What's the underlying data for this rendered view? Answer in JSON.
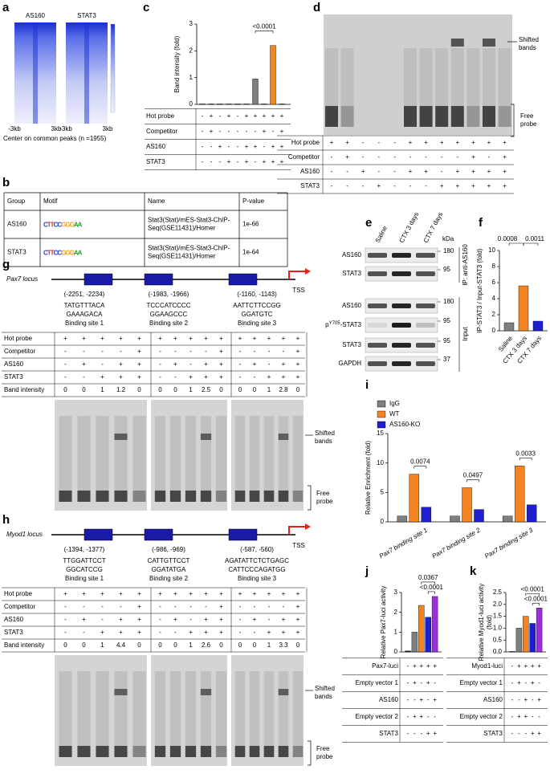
{
  "panel_labels": [
    "a",
    "b",
    "c",
    "d",
    "e",
    "f",
    "g",
    "h",
    "i",
    "j",
    "k"
  ],
  "a": {
    "titles": [
      "AS160",
      "STAT3"
    ],
    "ticks": [
      "-3kb",
      "3kb",
      "-3kb",
      "3kb"
    ],
    "caption": "Center on common peaks (n =1955)"
  },
  "b": {
    "header": [
      "Group",
      "Motif",
      "Name",
      "P-value"
    ],
    "rows": [
      {
        "group": "AS160",
        "motif": "CTTCCGGGAA",
        "name": [
          "Stat3(Stat)/mES-Stat3-ChIP-",
          "Seq(GSE11431)/Homer"
        ],
        "pvalue": "1e-66"
      },
      {
        "group": "STAT3",
        "motif": "CTTCCGGGAA",
        "name": [
          "Stat3(Stat)/mES-Stat3-ChIP-",
          "Seq(GSE11431)/Homer"
        ],
        "pvalue": "1e-64"
      }
    ]
  },
  "c": {
    "chart": {
      "type": "bar",
      "ylabel": "Band intensity (fold)",
      "ylim": [
        0,
        3
      ],
      "yticks": [
        0,
        1,
        2,
        3
      ],
      "values": [
        0.02,
        0.02,
        0.02,
        0.02,
        0.02,
        0.02,
        0.95,
        0.02,
        2.2,
        0.02
      ],
      "colors": [
        "#7f7f7f",
        "#7f7f7f",
        "#7f7f7f",
        "#7f7f7f",
        "#7f7f7f",
        "#7f7f7f",
        "#7f7f7f",
        "#7f7f7f",
        "#f28522",
        "#7f7f7f"
      ],
      "annotation": "<0.0001"
    },
    "table": {
      "row_labels": [
        "Hot probe",
        "Competitor",
        "AS160",
        "STAT3"
      ],
      "rows": [
        [
          "-",
          "+",
          "-",
          "+",
          "-",
          "+",
          "+",
          "+",
          "+",
          "+"
        ],
        [
          "-",
          "+",
          "-",
          "-",
          "-",
          "-",
          "-",
          "+",
          "-",
          "+"
        ],
        [
          "-",
          "-",
          "+",
          "-",
          "-",
          "+",
          "+",
          "-",
          "+",
          "+"
        ],
        [
          "-",
          "-",
          "-",
          "+",
          "-",
          "+",
          "-",
          "+",
          "+",
          "+"
        ]
      ]
    }
  },
  "d": {
    "shifted": [
      "Shifted",
      "bands"
    ],
    "free": [
      "Free",
      "probe"
    ],
    "table": {
      "row_labels": [
        "Hot probe",
        "Competitor",
        "AS160",
        "STAT3"
      ],
      "rows": [
        [
          "+",
          "+",
          "-",
          "-",
          "-",
          "+",
          "+",
          "+",
          "+",
          "+",
          "+",
          "+"
        ],
        [
          "-",
          "+",
          "-",
          "-",
          "-",
          "-",
          "-",
          "-",
          "-",
          "+",
          "-",
          "+"
        ],
        [
          "-",
          "-",
          "+",
          "-",
          "-",
          "+",
          "+",
          "-",
          "+",
          "+",
          "+",
          "+"
        ],
        [
          "-",
          "-",
          "-",
          "+",
          "-",
          "-",
          "-",
          "+",
          "+",
          "+",
          "+",
          "+"
        ]
      ]
    }
  },
  "e": {
    "columns": [
      "Saline",
      "CTX 3 days",
      "CTX 7 days"
    ],
    "unit": "kDa",
    "rows": [
      {
        "label": "AS160",
        "kda": 180
      },
      {
        "label": "STAT3",
        "kda": 95
      },
      {
        "label": "AS160",
        "kda": 180
      },
      {
        "label_parts": [
          "p",
          "Y705",
          "-STAT3"
        ],
        "kda": 95
      },
      {
        "label": "STAT3",
        "kda": 95
      },
      {
        "label": "GAPDH",
        "kda": 37
      }
    ],
    "groups": [
      "IP: anti-AS160",
      "Input"
    ]
  },
  "f": {
    "chart": {
      "type": "bar",
      "ylabel": "IP-STAT3 / Input-STAT3 (fold)",
      "ylim": [
        0,
        10
      ],
      "yticks": [
        0,
        2,
        4,
        6,
        8,
        10
      ],
      "categories": [
        "Saline",
        "CTX 3 days",
        "CTX 7 days"
      ],
      "values": [
        1,
        5.6,
        1.2
      ],
      "colors": [
        "#7f7f7f",
        "#f28522",
        "#1f1fd1"
      ],
      "annotations": [
        "0.0008",
        "0.0011"
      ]
    }
  },
  "g": {
    "locus": "Pax7 locus",
    "tss": "TSS",
    "sites": [
      {
        "coord": "(-2251, -2234)",
        "seq": [
          "TATGTTTACA",
          "GAAAGACA"
        ],
        "name": "Binding site 1"
      },
      {
        "coord": "(-1983, -1966)",
        "seq": [
          "TCCCATCCCC",
          "GGAAGCCC"
        ],
        "name": "Binding site 2"
      },
      {
        "coord": "(-1160, -1143)",
        "seq": [
          "AATTCTTCCGG",
          "GGATGTC"
        ],
        "name": "Binding site 3"
      }
    ],
    "row_labels": [
      "Hot probe",
      "Competitor",
      "AS160",
      "STAT3",
      "Band intensity"
    ],
    "groups": [
      [
        [
          "+",
          "+",
          "+",
          "+",
          "+"
        ],
        [
          "-",
          "-",
          "-",
          "-",
          "+"
        ],
        [
          "-",
          "+",
          "-",
          "+",
          "+"
        ],
        [
          "-",
          "-",
          "+",
          "+",
          "+"
        ],
        [
          0,
          0,
          1,
          1.2,
          0
        ]
      ],
      [
        [
          "+",
          "+",
          "+",
          "+",
          "+"
        ],
        [
          "-",
          "-",
          "-",
          "-",
          "+"
        ],
        [
          "-",
          "+",
          "-",
          "+",
          "+"
        ],
        [
          "-",
          "-",
          "+",
          "+",
          "+"
        ],
        [
          0,
          0,
          1,
          2.5,
          0
        ]
      ],
      [
        [
          "+",
          "+",
          "+",
          "+",
          "+"
        ],
        [
          "-",
          "-",
          "-",
          "-",
          "+"
        ],
        [
          "-",
          "+",
          "-",
          "+",
          "+"
        ],
        [
          "-",
          "-",
          "+",
          "+",
          "+"
        ],
        [
          0,
          0,
          1,
          2.8,
          0
        ]
      ]
    ],
    "shifted": [
      "Shifted",
      "bands"
    ],
    "free": [
      "Free",
      "probe"
    ]
  },
  "h": {
    "locus": "Myod1 locus",
    "tss": "TSS",
    "sites": [
      {
        "coord": "(-1394, -1377)",
        "seq": [
          "TTGGATTCCT",
          "GGCATCCG"
        ],
        "name": "Binding site 1"
      },
      {
        "coord": "(-986, -969)",
        "seq": [
          "CATTGTTCCT",
          "GGATATGA"
        ],
        "name": "Binding site 2"
      },
      {
        "coord": "(-587, -560)",
        "seq": [
          "AGATATTCTCTGAGC",
          "CATTCCCAGATGG"
        ],
        "name": "Binding site 3"
      }
    ],
    "row_labels": [
      "Hot probe",
      "Competitor",
      "AS160",
      "STAT3",
      "Band intensity"
    ],
    "groups": [
      [
        [
          "+",
          "+",
          "+",
          "+",
          "+"
        ],
        [
          "-",
          "-",
          "-",
          "-",
          "+"
        ],
        [
          "-",
          "+",
          "-",
          "+",
          "+"
        ],
        [
          "-",
          "-",
          "+",
          "+",
          "+"
        ],
        [
          0,
          0,
          1,
          4.4,
          0
        ]
      ],
      [
        [
          "+",
          "+",
          "+",
          "+",
          "+"
        ],
        [
          "-",
          "-",
          "-",
          "-",
          "+"
        ],
        [
          "-",
          "+",
          "-",
          "+",
          "+"
        ],
        [
          "-",
          "-",
          "+",
          "+",
          "+"
        ],
        [
          0,
          0,
          1,
          2.6,
          0
        ]
      ],
      [
        [
          "+",
          "+",
          "+",
          "+",
          "+"
        ],
        [
          "-",
          "-",
          "-",
          "-",
          "+"
        ],
        [
          "-",
          "+",
          "-",
          "+",
          "+"
        ],
        [
          "-",
          "-",
          "+",
          "+",
          "+"
        ],
        [
          0,
          0,
          1,
          3.3,
          0
        ]
      ]
    ],
    "shifted": [
      "Shifted",
      "bands"
    ],
    "free": [
      "Free",
      "probe"
    ]
  },
  "i": {
    "chart": {
      "type": "grouped-bar",
      "ylabel": "Relative Enrichment (fold)",
      "ylim": [
        0,
        15
      ],
      "yticks": [
        0,
        5,
        10,
        15
      ],
      "categories": [
        "Pax7 binding site 1",
        "Pax7 binding site 2",
        "Pax7 binding site 3"
      ],
      "series": [
        {
          "name": "IgG",
          "color": "#7f7f7f",
          "values": [
            1,
            1,
            1
          ]
        },
        {
          "name": "WT",
          "color": "#f28522",
          "values": [
            8.1,
            5.8,
            9.5
          ]
        },
        {
          "name": "AS160-KO",
          "color": "#1f1fd1",
          "values": [
            2.5,
            2.1,
            2.9
          ]
        }
      ],
      "annotations": [
        "0.0074",
        "0.0497",
        "0.0033"
      ]
    }
  },
  "j": {
    "chart": {
      "type": "bar",
      "ylabel": [
        "Relative Pax7-luci activity"
      ],
      "ylim": [
        0,
        3
      ],
      "yticks": [
        0,
        1,
        2,
        3
      ],
      "values": [
        0.05,
        1.0,
        2.35,
        1.75,
        2.8
      ],
      "colors": [
        "#222222",
        "#7f7f7f",
        "#f28522",
        "#1f1fd1",
        "#9b30d9"
      ],
      "annotations": [
        "0.0367",
        "<0.0001"
      ]
    },
    "table": {
      "row_labels": [
        "Pax7-luci",
        "Empty vector 1",
        "AS160",
        "Empty vector 2",
        "STAT3"
      ],
      "rows": [
        [
          "-",
          "+",
          "+",
          "+",
          "+"
        ],
        [
          "-",
          "+",
          "-",
          "+",
          "-"
        ],
        [
          "-",
          "-",
          "+",
          "-",
          "+"
        ],
        [
          "-",
          "+",
          "+",
          "-",
          "-"
        ],
        [
          "-",
          "-",
          "-",
          "+",
          "+"
        ]
      ]
    }
  },
  "k": {
    "chart": {
      "type": "bar",
      "ylabel": [
        "Relative Myod1-luci activity",
        "(fold)"
      ],
      "ylim": [
        0,
        2.5
      ],
      "yticks": [
        {
          "value": 0,
          "label": "0.0"
        },
        0.5,
        {
          "value": 1,
          "label": "1.0"
        },
        1.5,
        {
          "value": 2,
          "label": "2.0"
        },
        2.5
      ],
      "values": [
        0.02,
        1.0,
        1.5,
        1.2,
        1.85
      ],
      "colors": [
        "#222222",
        "#7f7f7f",
        "#f28522",
        "#1f1fd1",
        "#9b30d9"
      ],
      "annotations": [
        "<0.0001",
        "<0.0001"
      ]
    },
    "table": {
      "row_labels": [
        "Myod1-luci",
        "Empty vector 1",
        "AS160",
        "Empty vector 2",
        "STAT3"
      ],
      "rows": [
        [
          "-",
          "+",
          "+",
          "+",
          "+"
        ],
        [
          "-",
          "+",
          "-",
          "+",
          "-"
        ],
        [
          "-",
          "-",
          "+",
          "-",
          "+"
        ],
        [
          "-",
          "+",
          "+",
          "-",
          "-"
        ],
        [
          "-",
          "-",
          "-",
          "+",
          "+"
        ]
      ]
    }
  }
}
